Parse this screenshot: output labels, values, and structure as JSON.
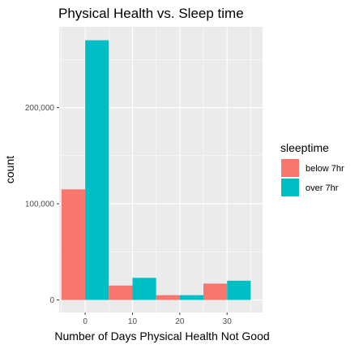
{
  "chart_data": {
    "type": "bar",
    "title": "Physical Health vs. Sleep time",
    "xlabel": "Number of Days Physical Health Not Good",
    "ylabel": "count",
    "x_ticks": [
      0,
      10,
      20,
      30
    ],
    "y_ticks": [
      {
        "value": 0,
        "label": "0"
      },
      {
        "value": 100000,
        "label": "100,000"
      },
      {
        "value": 200000,
        "label": "200,000"
      }
    ],
    "xlim": [
      -5.5,
      37.5
    ],
    "ylim": [
      -13000,
      284000
    ],
    "bin_width": 10,
    "bins": [
      0,
      10,
      20,
      30
    ],
    "grid": true,
    "legend": {
      "title": "sleeptime",
      "position": "right",
      "entries": [
        "below 7hr",
        "over 7hr"
      ]
    },
    "series": [
      {
        "name": "below 7hr",
        "color": "#f8766d",
        "values": [
          115000,
          15000,
          5000,
          17000
        ]
      },
      {
        "name": "over 7hr",
        "color": "#00bfc4",
        "values": [
          270000,
          23000,
          5000,
          20000
        ]
      }
    ]
  }
}
